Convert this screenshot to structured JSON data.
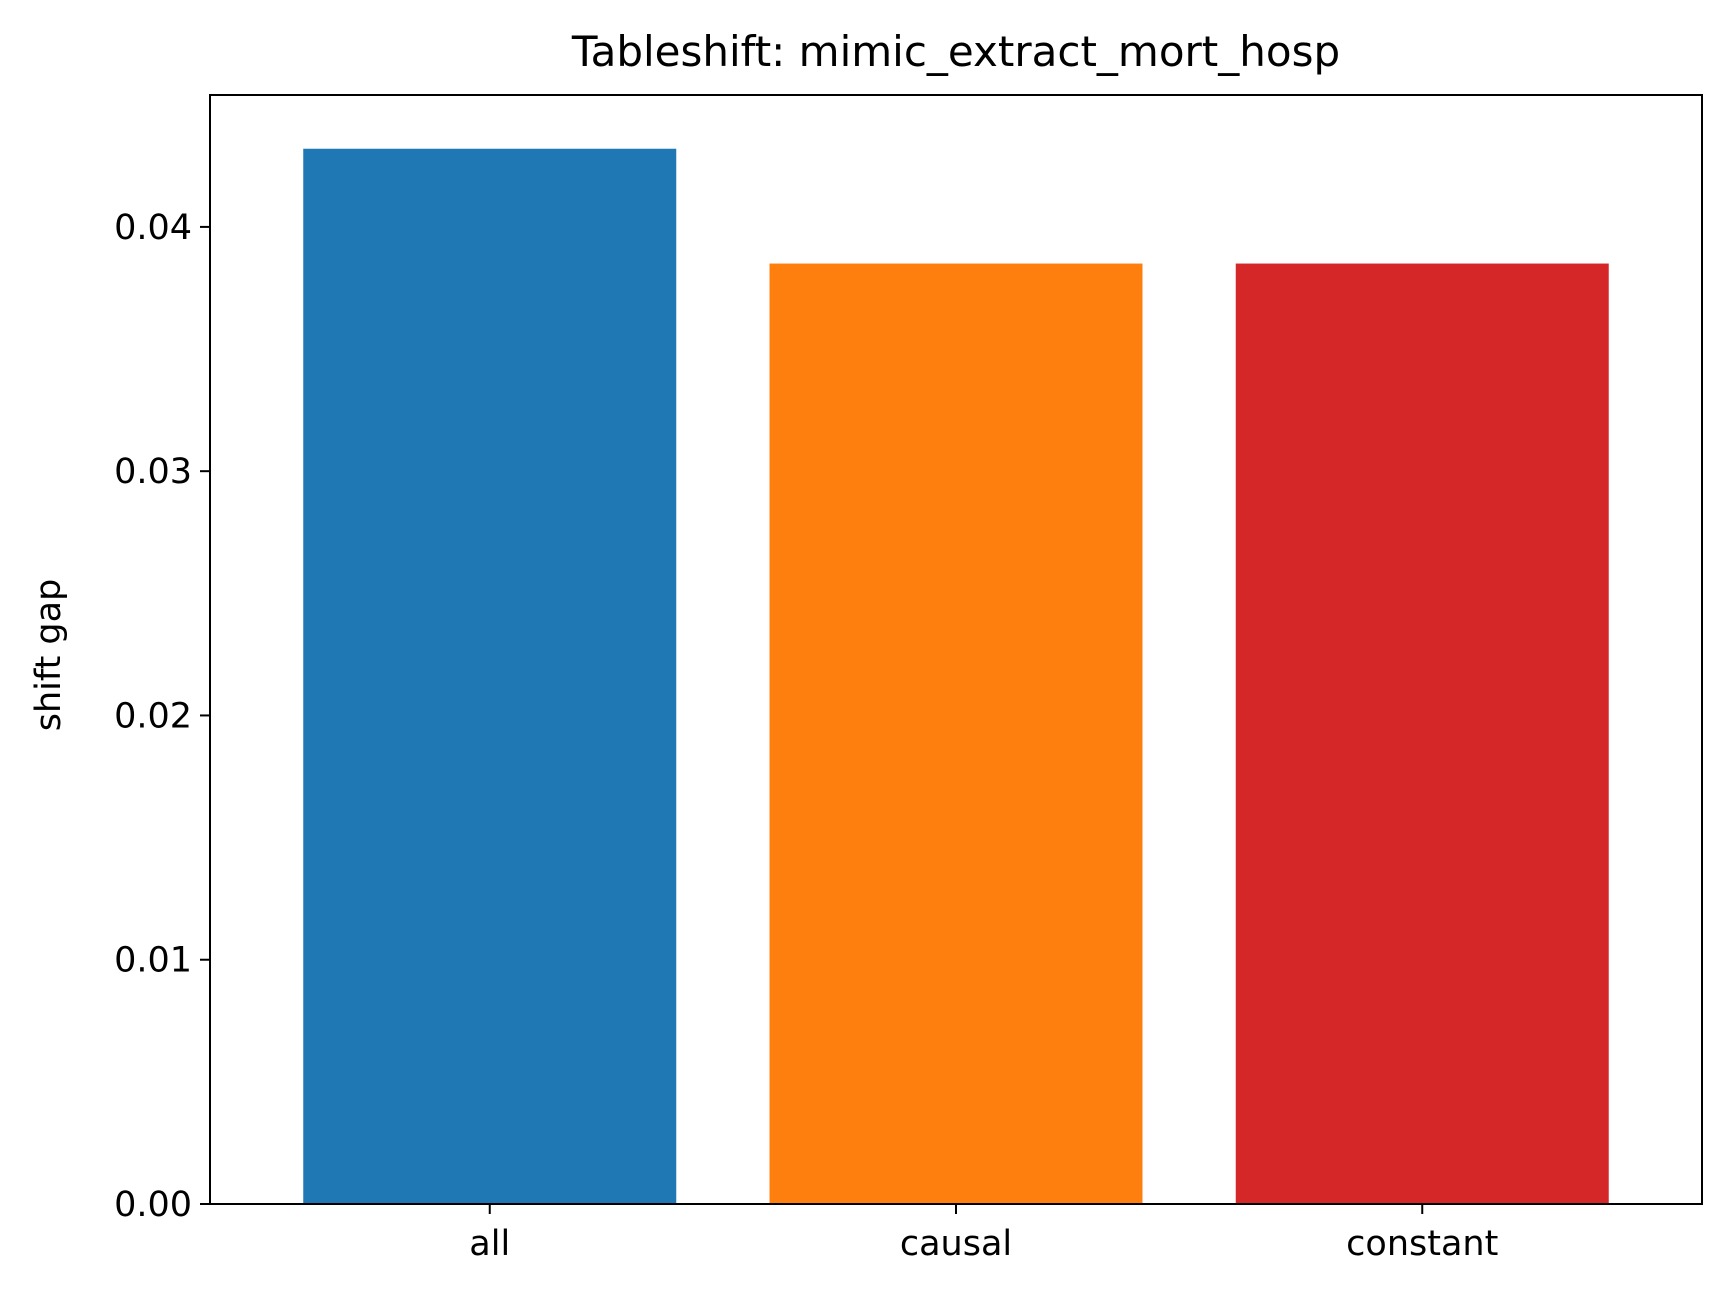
{
  "chart_data": {
    "type": "bar",
    "title": "Tableshift: mimic_extract_mort_hosp",
    "xlabel": "",
    "ylabel": "shift gap",
    "categories": [
      "all",
      "causal",
      "constant"
    ],
    "values": [
      0.0432,
      0.0385,
      0.0385
    ],
    "colors": [
      "#1f77b4",
      "#ff7f0e",
      "#d62728"
    ],
    "ylim": [
      0,
      0.0454
    ],
    "yticks": [
      0.0,
      0.01,
      0.02,
      0.03,
      0.04
    ],
    "ytick_labels": [
      "0.00",
      "0.01",
      "0.02",
      "0.03",
      "0.04"
    ],
    "grid": false,
    "legend": false
  }
}
